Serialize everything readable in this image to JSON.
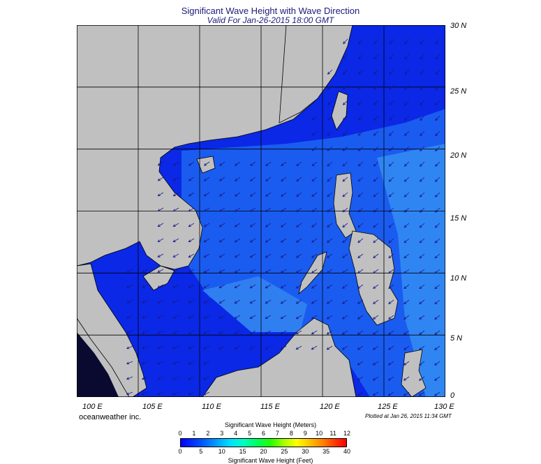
{
  "title": "Significant Wave Height with Wave Direction",
  "subtitle": "Valid For Jan-26-2015 18:00 GMT",
  "credit": "oceanweather inc.",
  "plotted": "Plotted at Jan 26, 2015 11:34 GMT",
  "lat_labels": [
    "30 N",
    "25 N",
    "20 N",
    "15 N",
    "10 N",
    "5 N",
    "0"
  ],
  "lon_labels": [
    "100 E",
    "105 E",
    "110 E",
    "115 E",
    "120 E",
    "125 E",
    "130 E"
  ],
  "legend": {
    "meters_title": "Significant Wave Height (Meters)",
    "feet_title": "Significant Wave Height (Feet)",
    "meters_ticks": [
      "0",
      "1",
      "2",
      "3",
      "4",
      "5",
      "6",
      "7",
      "8",
      "9",
      "10",
      "11",
      "12"
    ],
    "feet_ticks": [
      "0",
      "5",
      "10",
      "15",
      "20",
      "25",
      "30",
      "35",
      "40"
    ]
  },
  "colors": {
    "land": "#c0c0c0",
    "sea_deep": "#0a28e6",
    "sea_mid": "#1a5cf0",
    "sea_light": "#2f86f2",
    "arrow": "#1a1a8a"
  },
  "map": {
    "lon_range": [
      100,
      130
    ],
    "lat_range": [
      0,
      30
    ]
  }
}
